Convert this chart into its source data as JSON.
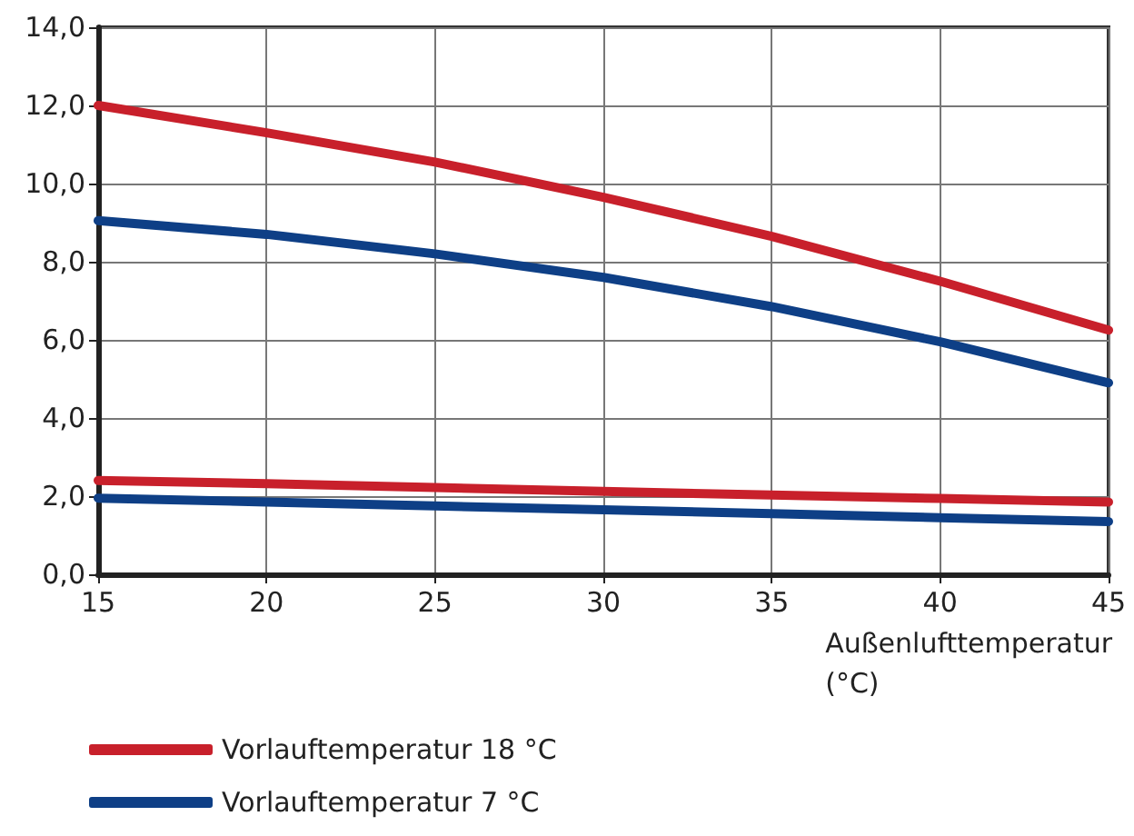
{
  "chart_data": {
    "type": "line",
    "xlabel": "Außenlufttemperatur\n(°C)",
    "x": [
      15,
      20,
      25,
      30,
      35,
      40,
      45
    ],
    "series": [
      {
        "name": "Vorlauftemperatur 18 °C",
        "color": "#c8202b",
        "values": [
          12.0,
          11.3,
          10.55,
          9.65,
          8.65,
          7.5,
          6.25
        ]
      },
      {
        "name": "Vorlauftemperatur 7 °C",
        "color": "#0e3f86",
        "values": [
          9.05,
          8.7,
          8.2,
          7.6,
          6.85,
          5.95,
          4.9
        ]
      },
      {
        "color": "#c8202b",
        "values": [
          2.4,
          2.32,
          2.22,
          2.12,
          2.03,
          1.94,
          1.85
        ]
      },
      {
        "color": "#0e3f86",
        "values": [
          1.95,
          1.85,
          1.75,
          1.65,
          1.55,
          1.45,
          1.35
        ]
      }
    ],
    "xlim": [
      15,
      45
    ],
    "xticks": [
      15,
      20,
      25,
      30,
      35,
      40,
      45
    ],
    "ylim": [
      0,
      14
    ],
    "yticks": [
      {
        "value": 0,
        "label": "0,0"
      },
      {
        "value": 2,
        "label": "2,0"
      },
      {
        "value": 4,
        "label": "4,0"
      },
      {
        "value": 6,
        "label": "6,0"
      },
      {
        "value": 8,
        "label": "8,0"
      },
      {
        "value": 10,
        "label": "10,0"
      },
      {
        "value": 12,
        "label": "12,0"
      },
      {
        "value": 14,
        "label": "14,0"
      }
    ],
    "grid": true,
    "legend": "bottom left",
    "marker": "none",
    "line_style": "solid"
  }
}
